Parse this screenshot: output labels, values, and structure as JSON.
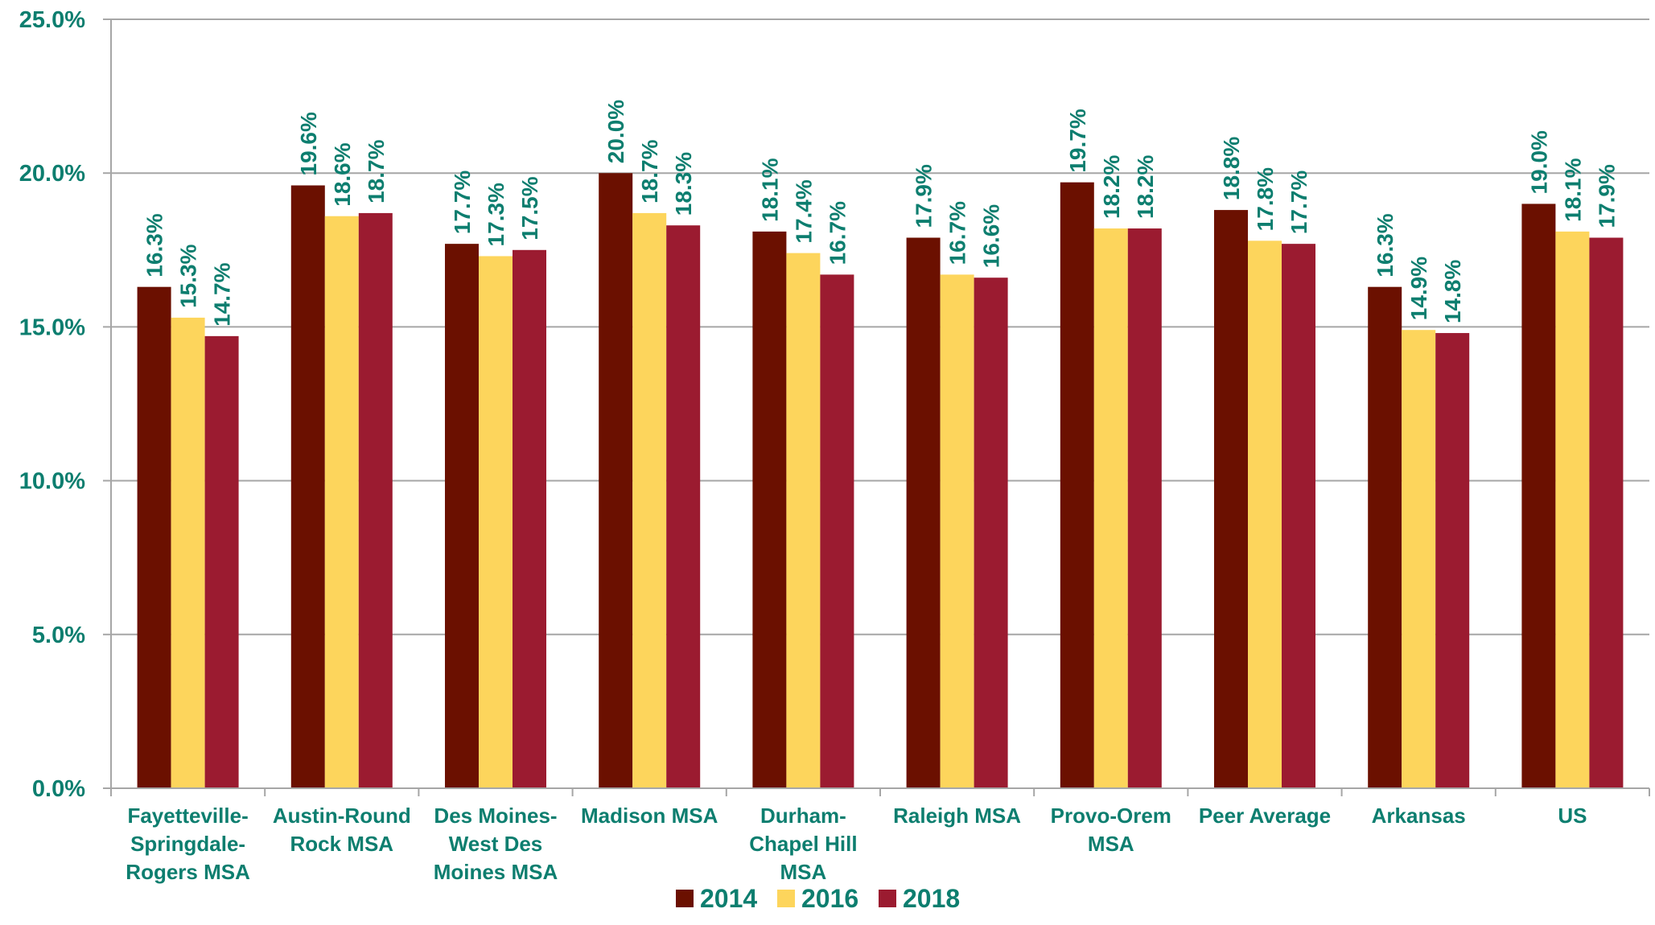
{
  "chart_data": {
    "type": "bar",
    "categories": [
      [
        "Fayetteville-",
        "Springdale-",
        "Rogers MSA"
      ],
      [
        "Austin-Round",
        "Rock MSA"
      ],
      [
        "Des Moines-",
        "West Des",
        "Moines MSA"
      ],
      [
        "Madison MSA"
      ],
      [
        "Durham-",
        "Chapel Hill",
        "MSA"
      ],
      [
        "Raleigh MSA"
      ],
      [
        "Provo-Orem",
        "MSA"
      ],
      [
        "Peer Average"
      ],
      [
        "Arkansas"
      ],
      [
        "US"
      ]
    ],
    "series": [
      {
        "name": "2014",
        "color": "#6b1000",
        "values": [
          16.3,
          19.6,
          17.7,
          20.0,
          18.1,
          17.9,
          19.7,
          18.8,
          16.3,
          19.0
        ],
        "labels": [
          "16.3%",
          "19.6%",
          "17.7%",
          "20.0%",
          "18.1%",
          "17.9%",
          "19.7%",
          "18.8%",
          "16.3%",
          "19.0%"
        ]
      },
      {
        "name": "2016",
        "color": "#fdd55c",
        "values": [
          15.3,
          18.6,
          17.3,
          18.7,
          17.4,
          16.7,
          18.2,
          17.8,
          14.9,
          18.1
        ],
        "labels": [
          "15.3%",
          "18.6%",
          "17.3%",
          "18.7%",
          "17.4%",
          "16.7%",
          "18.2%",
          "17.8%",
          "14.9%",
          "18.1%"
        ]
      },
      {
        "name": "2018",
        "color": "#9b1b30",
        "values": [
          14.7,
          18.7,
          17.5,
          18.3,
          16.7,
          16.6,
          18.2,
          17.7,
          14.8,
          17.9
        ],
        "labels": [
          "14.7%",
          "18.7%",
          "17.5%",
          "18.3%",
          "16.7%",
          "16.6%",
          "18.2%",
          "17.7%",
          "14.8%",
          "17.9%"
        ]
      }
    ],
    "yticks": [
      0,
      5,
      10,
      15,
      20,
      25
    ],
    "ytick_labels": [
      "0.0%",
      "5.0%",
      "10.0%",
      "15.0%",
      "20.0%",
      "25.0%"
    ],
    "ylim": [
      0,
      25
    ],
    "grid": true,
    "legend_position": "bottom-center",
    "text_color": "#0d7e6f",
    "grid_color": "#a6a6a6"
  }
}
